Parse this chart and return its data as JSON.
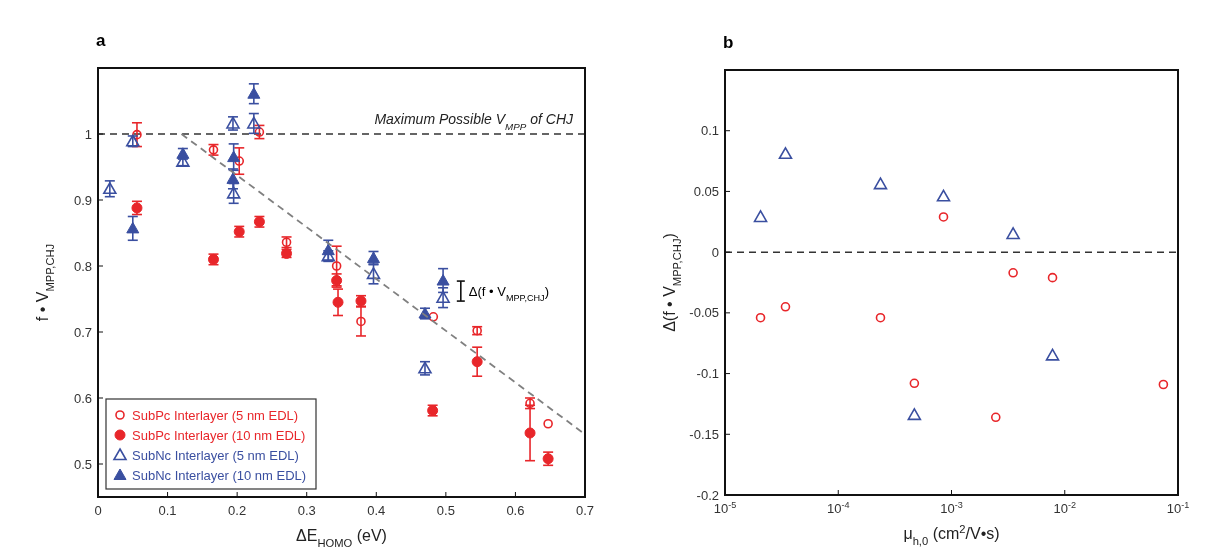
{
  "chart_data": [
    {
      "type": "scatter",
      "title": "a",
      "xlabel": "ΔE$_{HOMO}$ (eV)",
      "ylabel": "f • V$_{MPP,CHJ}$",
      "xlim": [
        0,
        0.7
      ],
      "ylim": [
        0.45,
        1.1
      ],
      "xticks": [
        0,
        0.1,
        0.2,
        0.3,
        0.4,
        0.5,
        0.6,
        0.7
      ],
      "yticks": [
        0.5,
        0.6,
        0.7,
        0.8,
        0.9,
        1
      ],
      "legend": "bottom left",
      "grid": false,
      "ref_lines": [
        {
          "axis": "y",
          "value": 1,
          "label": "Maximum Possible V$_{MPP}$ of CHJ",
          "color": "#333333",
          "line_style": "dashed"
        }
      ],
      "annotations": [
        "Δ(f • V$_{MPP,CHJ}$)"
      ],
      "series": [
        {
          "name": "SubPc Interlayer (5 nm EDL)",
          "color": "#e8262a",
          "marker": "circle-open",
          "x": [
            0.056,
            0.166,
            0.203,
            0.232,
            0.271,
            0.343,
            0.378,
            0.482,
            0.545,
            0.621,
            0.647
          ],
          "values": [
            0.999,
            0.976,
            0.959,
            1.003,
            0.836,
            0.8,
            0.716,
            0.723,
            0.702,
            0.592,
            0.561
          ],
          "errors": [
            0.018,
            0.008,
            0.02,
            0.01,
            0.008,
            0.03,
            0.022,
            null,
            0.006,
            0.008,
            null
          ]
        },
        {
          "name": "SubPc Interlayer (10 nm EDL)",
          "color": "#e8262a",
          "marker": "circle",
          "x": [
            0.056,
            0.166,
            0.203,
            0.232,
            0.271,
            0.343,
            0.345,
            0.378,
            0.481,
            0.545,
            0.621,
            0.647
          ],
          "values": [
            0.888,
            0.81,
            0.852,
            0.867,
            0.819,
            0.778,
            0.745,
            0.747,
            0.581,
            0.655,
            0.547,
            0.508
          ],
          "errors": [
            0.01,
            0.008,
            0.008,
            0.008,
            0.006,
            0.01,
            0.02,
            0.008,
            0.008,
            0.022,
            0.042,
            0.01
          ]
        },
        {
          "name": "SubNc Interlayer (5 nm EDL)",
          "color": "#3a4fa0",
          "marker": "triangle-open",
          "x": [
            0.017,
            0.05,
            0.122,
            0.194,
            0.195,
            0.224,
            0.331,
            0.396,
            0.47,
            0.496
          ],
          "values": [
            0.917,
            0.989,
            0.958,
            1.016,
            0.91,
            1.016,
            0.815,
            0.788,
            0.645,
            0.752
          ],
          "errors": [
            0.012,
            0.008,
            0.006,
            0.01,
            0.015,
            0.015,
            0.008,
            0.015,
            0.01,
            0.015
          ]
        },
        {
          "name": "SubNc Interlayer (10 nm EDL)",
          "color": "#3a4fa0",
          "marker": "triangle",
          "x": [
            0.05,
            0.122,
            0.194,
            0.195,
            0.224,
            0.331,
            0.396,
            0.47,
            0.496
          ],
          "values": [
            0.857,
            0.97,
            0.932,
            0.965,
            1.061,
            0.824,
            0.812,
            0.728,
            0.778
          ],
          "errors": [
            0.018,
            0.008,
            0.015,
            0.02,
            0.015,
            0.015,
            0.01,
            0.008,
            0.018
          ]
        },
        {
          "type": "line",
          "color": "#808080",
          "marker": "none",
          "line_style": "dashed",
          "x": [
            0.12,
            0.7
          ],
          "values": [
            1.0,
            0.545
          ]
        }
      ]
    },
    {
      "type": "scatter",
      "title": "b",
      "xlabel": "μ$_{h,0}$ (cm$^{2}$/V•s)",
      "ylabel": "Δ(f • V$_{MPP,CHJ}$)",
      "log": "x",
      "xlim": [
        1e-05,
        0.1
      ],
      "ylim": [
        -0.2,
        0.15
      ],
      "xticks": [
        {
          "value": 1e-05,
          "label": "10$^{-5}$"
        },
        {
          "value": 0.0001,
          "label": "10$^{-4}$"
        },
        {
          "value": 0.001,
          "label": "10$^{-3}$"
        },
        {
          "value": 0.01,
          "label": "10$^{-2}$"
        },
        {
          "value": 0.1,
          "label": "10$^{-1}$"
        }
      ],
      "yticks": [
        -0.2,
        -0.15,
        -0.1,
        -0.05,
        0,
        0.05,
        0.1
      ],
      "grid": false,
      "ref_lines": [
        {
          "axis": "y",
          "value": 0,
          "color": "#333333",
          "line_style": "dashed"
        }
      ],
      "series": [
        {
          "color": "#3a4fa0",
          "marker": "triangle-open",
          "x": [
            2.06e-05,
            3.42e-05,
            0.000236,
            0.00085,
            0.0035,
            0.00047,
            0.0078
          ],
          "values": [
            0.029,
            0.081,
            0.056,
            0.046,
            0.015,
            -0.134,
            -0.085
          ]
        },
        {
          "color": "#e8262a",
          "marker": "circle-open",
          "x": [
            2.06e-05,
            3.42e-05,
            0.000236,
            0.00085,
            0.0035,
            0.0078,
            0.00047,
            0.00246,
            0.0743
          ],
          "values": [
            -0.054,
            -0.045,
            -0.054,
            0.029,
            -0.017,
            -0.021,
            -0.108,
            -0.136,
            -0.109
          ]
        }
      ]
    }
  ]
}
